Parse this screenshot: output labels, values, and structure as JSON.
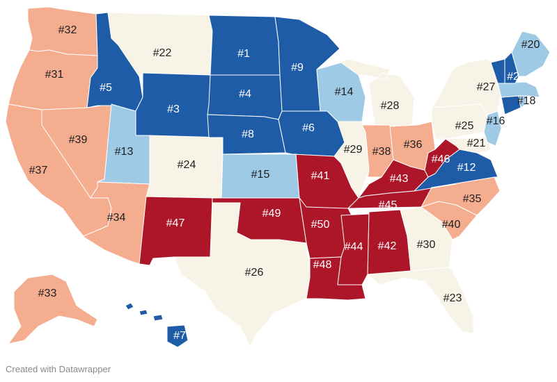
{
  "colors": {
    "tier1": "#1f5ca8",
    "tier2": "#9ecae6",
    "tier3": "#f7f3e6",
    "tier4": "#f5ad90",
    "tier5": "#ad1628",
    "dark_text": "#1e1e1e",
    "light_text": "#ffffff"
  },
  "states": [
    {
      "code": "WA",
      "rank": "#32",
      "tier": "tier4"
    },
    {
      "code": "OR",
      "rank": "#31",
      "tier": "tier4"
    },
    {
      "code": "CA",
      "rank": "#37",
      "tier": "tier4"
    },
    {
      "code": "NV",
      "rank": "#39",
      "tier": "tier4"
    },
    {
      "code": "ID",
      "rank": "#5",
      "tier": "tier1"
    },
    {
      "code": "MT",
      "rank": "#22",
      "tier": "tier3"
    },
    {
      "code": "WY",
      "rank": "#3",
      "tier": "tier1"
    },
    {
      "code": "UT",
      "rank": "#13",
      "tier": "tier2"
    },
    {
      "code": "AZ",
      "rank": "#34",
      "tier": "tier4"
    },
    {
      "code": "CO",
      "rank": "#24",
      "tier": "tier3"
    },
    {
      "code": "NM",
      "rank": "#47",
      "tier": "tier5"
    },
    {
      "code": "ND",
      "rank": "#1",
      "tier": "tier1"
    },
    {
      "code": "SD",
      "rank": "#4",
      "tier": "tier1"
    },
    {
      "code": "NE",
      "rank": "#8",
      "tier": "tier1"
    },
    {
      "code": "KS",
      "rank": "#15",
      "tier": "tier2"
    },
    {
      "code": "OK",
      "rank": "#49",
      "tier": "tier5"
    },
    {
      "code": "TX",
      "rank": "#26",
      "tier": "tier3"
    },
    {
      "code": "MN",
      "rank": "#9",
      "tier": "tier1"
    },
    {
      "code": "IA",
      "rank": "#6",
      "tier": "tier1"
    },
    {
      "code": "MO",
      "rank": "#41",
      "tier": "tier5"
    },
    {
      "code": "AR",
      "rank": "#50",
      "tier": "tier5"
    },
    {
      "code": "LA",
      "rank": "#48",
      "tier": "tier5"
    },
    {
      "code": "WI",
      "rank": "#14",
      "tier": "tier2"
    },
    {
      "code": "IL",
      "rank": "#29",
      "tier": "tier3"
    },
    {
      "code": "MI",
      "rank": "#28",
      "tier": "tier3"
    },
    {
      "code": "IN",
      "rank": "#38",
      "tier": "tier4"
    },
    {
      "code": "OH",
      "rank": "#36",
      "tier": "tier4"
    },
    {
      "code": "KY",
      "rank": "#43",
      "tier": "tier5"
    },
    {
      "code": "TN",
      "rank": "#45",
      "tier": "tier5"
    },
    {
      "code": "MS",
      "rank": "#44",
      "tier": "tier5"
    },
    {
      "code": "AL",
      "rank": "#42",
      "tier": "tier5"
    },
    {
      "code": "GA",
      "rank": "#30",
      "tier": "tier3"
    },
    {
      "code": "FL",
      "rank": "#23",
      "tier": "tier3"
    },
    {
      "code": "SC",
      "rank": "#40",
      "tier": "tier4"
    },
    {
      "code": "NC",
      "rank": "#35",
      "tier": "tier4"
    },
    {
      "code": "VA",
      "rank": "#12",
      "tier": "tier1"
    },
    {
      "code": "WV",
      "rank": "#46",
      "tier": "tier5"
    },
    {
      "code": "MD",
      "rank": "#21",
      "tier": "tier3"
    },
    {
      "code": "DE",
      "rank": "",
      "tier": "tier3"
    },
    {
      "code": "PA",
      "rank": "#25",
      "tier": "tier3"
    },
    {
      "code": "NJ",
      "rank": "#16",
      "tier": "tier2"
    },
    {
      "code": "NY",
      "rank": "#27",
      "tier": "tier3"
    },
    {
      "code": "CT",
      "rank": "",
      "tier": "tier1"
    },
    {
      "code": "RI",
      "rank": "",
      "tier": "tier2"
    },
    {
      "code": "MA",
      "rank": "#18",
      "tier": "tier2"
    },
    {
      "code": "VT",
      "rank": "",
      "tier": "tier1"
    },
    {
      "code": "NH",
      "rank": "#2",
      "tier": "tier1"
    },
    {
      "code": "ME",
      "rank": "#20",
      "tier": "tier2"
    },
    {
      "code": "AK",
      "rank": "#33",
      "tier": "tier4"
    },
    {
      "code": "HI",
      "rank": "#7",
      "tier": "tier1"
    }
  ],
  "credit": "Created with Datawrapper"
}
